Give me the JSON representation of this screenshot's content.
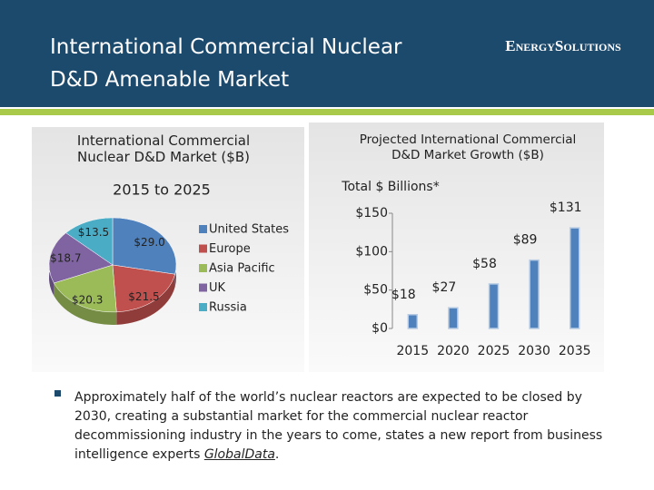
{
  "header": {
    "title": "International Commercial Nuclear D&D Amenable Market",
    "logo": "EnergySolutions"
  },
  "chart_data": [
    {
      "type": "pie",
      "title": "International Commercial Nuclear D&D Market ($B)",
      "subtitle": "2015 to 2025",
      "categories": [
        "United States",
        "Europe",
        "Asia Pacific",
        "UK",
        "Russia"
      ],
      "values": [
        29.0,
        21.5,
        20.3,
        18.7,
        13.5
      ],
      "value_labels": [
        "$29.0",
        "$21.5",
        "$20.3",
        "$18.7",
        "$13.5"
      ],
      "colors": [
        "#4f81bd",
        "#c0504d",
        "#9bbb59",
        "#8064a2",
        "#4bacc6"
      ]
    },
    {
      "type": "bar",
      "title": "Projected International Commercial D&D Market Growth ($B)",
      "y_label": "Total $ Billions*",
      "categories": [
        "2015",
        "2020",
        "2025",
        "2030",
        "2035"
      ],
      "values": [
        18,
        27,
        58,
        89,
        131
      ],
      "value_labels": [
        "$18",
        "$27",
        "$58",
        "$89",
        "$131"
      ],
      "color": "#4f81bd",
      "ylim": [
        0,
        150
      ],
      "yticks": [
        {
          "value": 0,
          "label": "$0"
        },
        {
          "value": 50,
          "label": "$50"
        },
        {
          "value": 100,
          "label": "$100"
        },
        {
          "value": 150,
          "label": "$150"
        }
      ]
    }
  ],
  "bullet": {
    "parts": [
      "Approximately half of the world’s nuclear reactors are expected to be closed by 2030, creating a substantial market for the commercial nuclear reactor decommissioning industry in the years to come, states a new report from business intelligence experts ",
      "GlobalData",
      "."
    ]
  }
}
